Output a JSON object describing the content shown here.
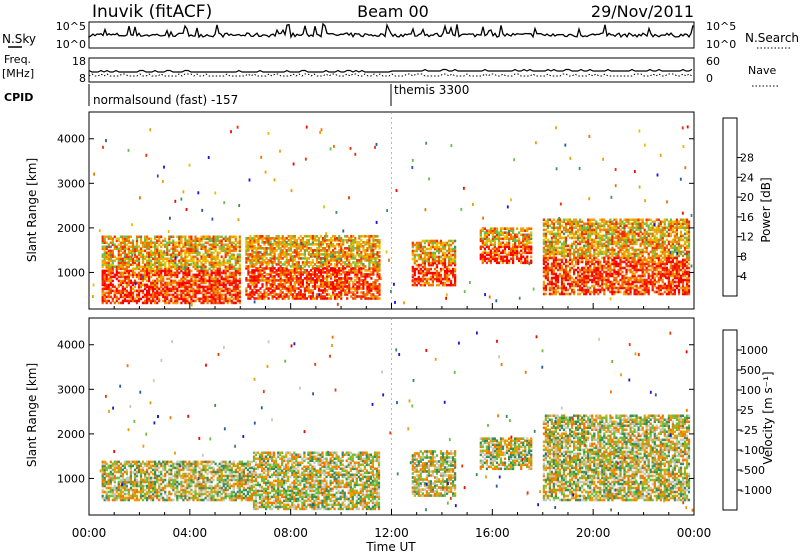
{
  "header": {
    "station": "Inuvik (fitACF)",
    "beam": "Beam 00",
    "date": "29/Nov/2011"
  },
  "panels": {
    "nsky": {
      "label": "N.Sky",
      "ticks_left": [
        "10^5",
        "10^0"
      ],
      "right_label": "N.Search",
      "ticks_right": [
        "10^5",
        "10^0"
      ]
    },
    "freq": {
      "label_line1": "Freq.",
      "label_line2": "[MHz]",
      "ticks_left": [
        "18",
        "8"
      ],
      "right_label": "Nave",
      "ticks_right": [
        "60",
        "0"
      ]
    },
    "cpid": {
      "label": "CPID",
      "segments": [
        "normalsound (fast) -157",
        "themis 3300"
      ]
    },
    "power": {
      "ylabel": "Slant Range [km]",
      "yticks": [
        "1000",
        "2000",
        "3000",
        "4000"
      ],
      "colorbar_label": "Power [dB]",
      "colorbar_ticks": [
        "4",
        "8",
        "12",
        "16",
        "20",
        "24",
        "28"
      ],
      "colors": [
        "#1010ff",
        "#2a55a8",
        "#4a8a6a",
        "#6abf4a",
        "#e8c000",
        "#f0a000",
        "#f07000",
        "#f03000",
        "#ff0000"
      ]
    },
    "velocity": {
      "ylabel": "Slant Range [km]",
      "yticks": [
        "1000",
        "2000",
        "3000",
        "4000"
      ],
      "colorbar_label": "Velocity [m s⁻¹]",
      "colorbar_ticks": [
        "1000",
        "500",
        "100",
        "25",
        "-25",
        "-100",
        "-500",
        "-1000"
      ],
      "colors": [
        "#1818d8",
        "#2858a0",
        "#3a8a5a",
        "#6cbf3a",
        "#c8c8b8",
        "#e8a000",
        "#f07800",
        "#f03800",
        "#ff0000"
      ]
    }
  },
  "xaxis": {
    "label": "Time UT",
    "ticks": [
      "00:00",
      "04:00",
      "08:00",
      "12:00",
      "16:00",
      "20:00",
      "00:00"
    ]
  },
  "chart_data": [
    {
      "type": "heatmap",
      "title": "Power",
      "x_range_hours": [
        0,
        24
      ],
      "y_range_km": [
        180,
        4600
      ],
      "colorbar": {
        "label": "Power [dB]",
        "ticks": [
          4,
          8,
          12,
          16,
          20,
          24,
          28
        ]
      },
      "regions": [
        {
          "t0": 0.5,
          "t1": 6.0,
          "r0": 300,
          "r1": 1800,
          "value": 26
        },
        {
          "t0": 6.2,
          "t1": 11.5,
          "r0": 400,
          "r1": 1800,
          "value": 22
        },
        {
          "t0": 12.8,
          "t1": 14.5,
          "r0": 700,
          "r1": 1700,
          "value": 22
        },
        {
          "t0": 15.5,
          "t1": 17.5,
          "r0": 1200,
          "r1": 2000,
          "value": 14
        },
        {
          "t0": 18.0,
          "t1": 23.8,
          "r0": 500,
          "r1": 2200,
          "value": 26
        }
      ]
    },
    {
      "type": "heatmap",
      "title": "Velocity",
      "x_range_hours": [
        0,
        24
      ],
      "y_range_km": [
        180,
        4600
      ],
      "colorbar": {
        "label": "Velocity [m s⁻¹]",
        "ticks": [
          1000,
          500,
          100,
          25,
          -25,
          -100,
          -500,
          -1000
        ]
      },
      "regions": [
        {
          "t0": 0.5,
          "t1": 6.5,
          "r0": 500,
          "r1": 1400,
          "value": -300
        },
        {
          "t0": 6.5,
          "t1": 11.5,
          "r0": 300,
          "r1": 1600,
          "value": 150
        },
        {
          "t0": 12.8,
          "t1": 14.5,
          "r0": 600,
          "r1": 1600,
          "value": -300
        },
        {
          "t0": 15.5,
          "t1": 17.5,
          "r0": 1200,
          "r1": 1900,
          "value": 80
        },
        {
          "t0": 18.0,
          "t1": 23.8,
          "r0": 500,
          "r1": 2400,
          "value": -400
        }
      ]
    }
  ]
}
